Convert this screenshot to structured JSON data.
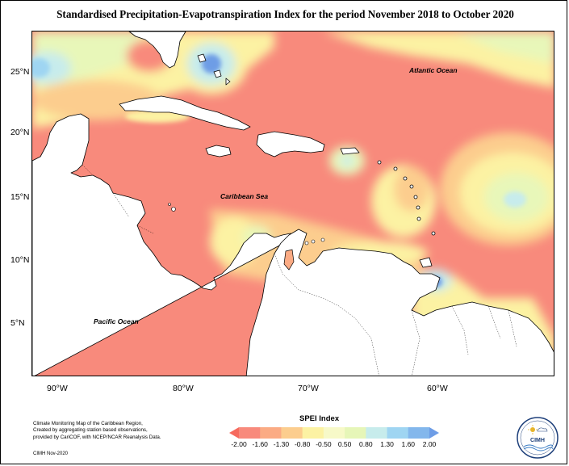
{
  "title": "Standardised Precipitation-Evapotranspiration Index for the period November 2018 to October 2020",
  "map": {
    "latitude_labels": [
      "25°N",
      "20°N",
      "15°N",
      "10°N",
      "5°N"
    ],
    "longitude_labels": [
      "90°W",
      "80°W",
      "70°W",
      "60°W"
    ],
    "ocean_labels": {
      "atlantic": "Atlantic Ocean",
      "caribbean": "Caribbean Sea",
      "pacific": "Pacific Ocean"
    },
    "colors": {
      "land": "#ffffff",
      "coastline": "#000000",
      "dry_severe": "#f88a7c",
      "dry_moderate": "#fbab84",
      "dry_mild": "#fccd8e",
      "normal_dry": "#fcf2a3",
      "normal_wet": "#e8f7b9",
      "wet_mild": "#c7ecec",
      "wet_moderate": "#9fd5f2",
      "wet_severe": "#6e9de6"
    }
  },
  "legend": {
    "title": "SPEI Index",
    "ticks": [
      "-2.00",
      "-1.60",
      "-1.30",
      "-0.80",
      "-0.50",
      "0.50",
      "0.80",
      "1.30",
      "1.60",
      "2.00"
    ],
    "colors": [
      "#f66a5e",
      "#f88a7c",
      "#fbab84",
      "#fccd8e",
      "#fcf2a3",
      "#f7f9c8",
      "#e6f6b8",
      "#c7ecec",
      "#9fd5f2",
      "#83b7ec",
      "#6e9de6"
    ]
  },
  "footer": {
    "note_lines": [
      "Climate Monitoring Map of the Caribbean Region,",
      "Created by aggregating station based observations,",
      "provided by CariCOF, with NCEP/NCAR Reanalysis Data."
    ],
    "credit": "CIMH Nov-2020",
    "logo_text": "CIMH"
  }
}
